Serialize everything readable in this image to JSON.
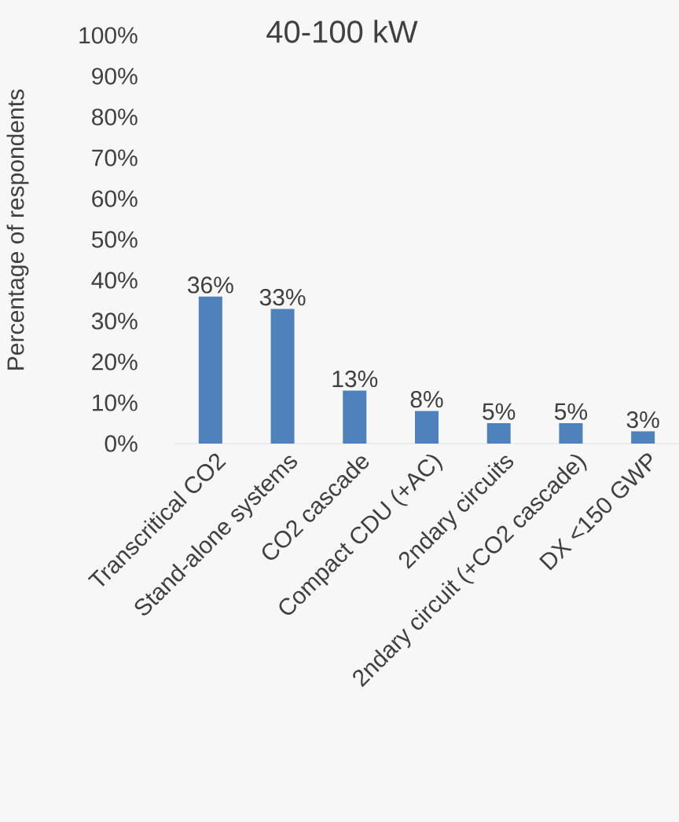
{
  "chart_data": {
    "type": "bar",
    "title": "40-100 kW",
    "ylabel": "Percentage of respondents",
    "categories": [
      "Transcritical CO2",
      "Stand-alone systems",
      "CO2 cascade",
      "Compact CDU (+AC)",
      "2ndary circuits",
      "2ndary circuit (+CO2 cascade)",
      "DX <150 GWP"
    ],
    "values": [
      36,
      33,
      13,
      8,
      5,
      5,
      3
    ],
    "value_labels": [
      "36%",
      "33%",
      "13%",
      "8%",
      "5%",
      "5%",
      "3%"
    ],
    "color": "#4f81bd",
    "ylim": [
      0,
      100
    ],
    "yticks": [
      {
        "value": 0,
        "label": "0%"
      },
      {
        "value": 10,
        "label": "10%"
      },
      {
        "value": 20,
        "label": "20%"
      },
      {
        "value": 30,
        "label": "30%"
      },
      {
        "value": 40,
        "label": "40%"
      },
      {
        "value": 50,
        "label": "50%"
      },
      {
        "value": 60,
        "label": "60%"
      },
      {
        "value": 70,
        "label": "70%"
      },
      {
        "value": 80,
        "label": "80%"
      },
      {
        "value": 90,
        "label": "90%"
      },
      {
        "value": 100,
        "label": "100%"
      }
    ],
    "grid": false
  }
}
